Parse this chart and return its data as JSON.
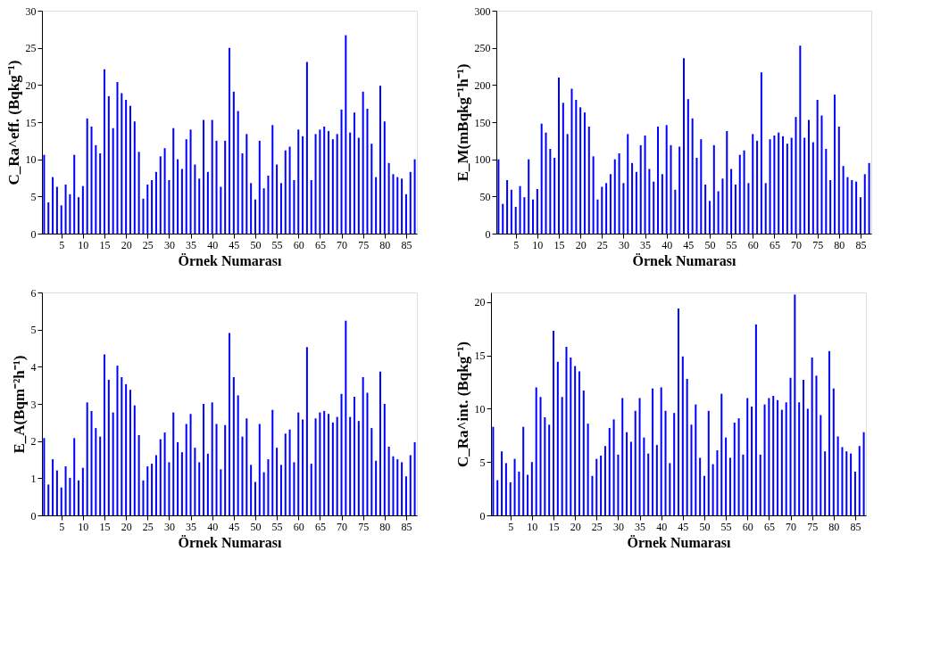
{
  "chart_data": [
    {
      "type": "bar",
      "xlabel": "Örnek Numarası",
      "ylabel": "C_Ra^eff. (Bqkg⁻¹)",
      "color": "#0000ff",
      "grid": false,
      "xlim": [
        0.5,
        87.5
      ],
      "xticks": [
        5,
        10,
        15,
        20,
        25,
        30,
        35,
        40,
        45,
        50,
        55,
        60,
        65,
        70,
        75,
        80,
        85
      ],
      "ylim": [
        0,
        30
      ],
      "yticks": [
        0,
        5,
        10,
        15,
        20,
        25,
        30
      ],
      "x": [
        1,
        2,
        3,
        4,
        5,
        6,
        7,
        8,
        9,
        10,
        11,
        12,
        13,
        14,
        15,
        16,
        17,
        18,
        19,
        20,
        21,
        22,
        23,
        24,
        25,
        26,
        27,
        28,
        29,
        30,
        31,
        32,
        33,
        34,
        35,
        36,
        37,
        38,
        39,
        40,
        41,
        42,
        43,
        44,
        45,
        46,
        47,
        48,
        49,
        50,
        51,
        52,
        53,
        54,
        55,
        56,
        57,
        58,
        59,
        60,
        61,
        62,
        63,
        64,
        65,
        66,
        67,
        68,
        69,
        70,
        71,
        72,
        73,
        74,
        75,
        76,
        77,
        78,
        79,
        80,
        81,
        82,
        83,
        84,
        85,
        86,
        87
      ],
      "values": [
        10.6,
        4.2,
        7.6,
        6.3,
        3.8,
        6.6,
        5.3,
        10.6,
        4.9,
        6.4,
        15.5,
        14.4,
        11.9,
        10.8,
        22.1,
        18.5,
        14.2,
        20.4,
        18.9,
        18.0,
        17.2,
        15.1,
        11.0,
        4.7,
        6.6,
        7.2,
        8.3,
        10.4,
        11.5,
        7.2,
        14.2,
        10.0,
        8.7,
        12.7,
        14.0,
        9.3,
        7.4,
        15.3,
        8.3,
        15.3,
        12.5,
        6.3,
        12.5,
        25.0,
        19.1,
        16.5,
        10.8,
        13.4,
        6.8,
        4.6,
        12.5,
        6.1,
        7.8,
        14.6,
        9.3,
        6.8,
        11.2,
        11.7,
        7.2,
        14.0,
        13.1,
        23.1,
        7.2,
        13.4,
        14.0,
        14.4,
        13.8,
        12.7,
        13.4,
        16.7,
        26.7,
        13.6,
        16.3,
        12.9,
        19.1,
        16.8,
        12.1,
        7.6,
        19.9,
        15.1,
        9.5,
        8.0,
        7.6,
        7.4,
        5.3,
        8.3,
        10.0
      ]
    },
    {
      "type": "bar",
      "xlabel": "Örnek Numarası",
      "ylabel": "E_M(mBqkg⁻¹h⁻¹)",
      "color": "#0000ff",
      "grid": false,
      "xlim": [
        0.5,
        87.5
      ],
      "xticks": [
        5,
        10,
        15,
        20,
        25,
        30,
        35,
        40,
        45,
        50,
        55,
        60,
        65,
        70,
        75,
        80,
        85
      ],
      "ylim": [
        0,
        300
      ],
      "yticks": [
        0,
        50,
        100,
        150,
        200,
        250,
        300
      ],
      "x": [
        1,
        2,
        3,
        4,
        5,
        6,
        7,
        8,
        9,
        10,
        11,
        12,
        13,
        14,
        15,
        16,
        17,
        18,
        19,
        20,
        21,
        22,
        23,
        24,
        25,
        26,
        27,
        28,
        29,
        30,
        31,
        32,
        33,
        34,
        35,
        36,
        37,
        38,
        39,
        40,
        41,
        42,
        43,
        44,
        45,
        46,
        47,
        48,
        49,
        50,
        51,
        52,
        53,
        54,
        55,
        56,
        57,
        58,
        59,
        60,
        61,
        62,
        63,
        64,
        65,
        66,
        67,
        68,
        69,
        70,
        71,
        72,
        73,
        74,
        75,
        76,
        77,
        78,
        79,
        80,
        81,
        82,
        83,
        84,
        85,
        86,
        87
      ],
      "values": [
        100,
        40,
        72,
        59,
        36,
        64,
        49,
        100,
        46,
        60,
        148,
        136,
        114,
        102,
        210,
        176,
        134,
        195,
        180,
        170,
        163,
        144,
        104,
        46,
        63,
        68,
        80,
        100,
        108,
        68,
        134,
        95,
        83,
        119,
        132,
        87,
        70,
        144,
        80,
        146,
        119,
        59,
        117,
        236,
        181,
        155,
        102,
        127,
        66,
        44,
        119,
        57,
        74,
        138,
        87,
        66,
        106,
        112,
        68,
        134,
        125,
        217,
        68,
        127,
        132,
        136,
        131,
        121,
        129,
        157,
        253,
        129,
        153,
        123,
        180,
        159,
        114,
        72,
        187,
        144,
        91,
        76,
        72,
        70,
        49,
        80,
        95
      ]
    },
    {
      "type": "bar",
      "xlabel": "Örnek Numarası",
      "ylabel": "E_A(Bqm⁻²h⁻¹)",
      "color": "#0000ff",
      "grid": false,
      "xlim": [
        0.5,
        87.5
      ],
      "xticks": [
        5,
        10,
        15,
        20,
        25,
        30,
        35,
        40,
        45,
        50,
        55,
        60,
        65,
        70,
        75,
        80,
        85
      ],
      "ylim": [
        0,
        6
      ],
      "yticks": [
        0,
        1,
        2,
        3,
        4,
        5,
        6
      ],
      "x": [
        1,
        2,
        3,
        4,
        5,
        6,
        7,
        8,
        9,
        10,
        11,
        12,
        13,
        14,
        15,
        16,
        17,
        18,
        19,
        20,
        21,
        22,
        23,
        24,
        25,
        26,
        27,
        28,
        29,
        30,
        31,
        32,
        33,
        34,
        35,
        36,
        37,
        38,
        39,
        40,
        41,
        42,
        43,
        44,
        45,
        46,
        47,
        48,
        49,
        50,
        51,
        52,
        53,
        54,
        55,
        56,
        57,
        58,
        59,
        60,
        61,
        62,
        63,
        64,
        65,
        66,
        67,
        68,
        69,
        70,
        71,
        72,
        73,
        74,
        75,
        76,
        77,
        78,
        79,
        80,
        81,
        82,
        83,
        84,
        85,
        86,
        87
      ],
      "values": [
        2.08,
        0.83,
        1.51,
        1.21,
        0.75,
        1.32,
        1.01,
        2.08,
        0.94,
        1.28,
        3.04,
        2.81,
        2.35,
        2.12,
        4.33,
        3.65,
        2.77,
        4.03,
        3.72,
        3.53,
        3.38,
        2.96,
        2.16,
        0.94,
        1.32,
        1.39,
        1.62,
        2.05,
        2.23,
        1.43,
        2.77,
        1.97,
        1.7,
        2.46,
        2.73,
        1.82,
        1.43,
        3.0,
        1.66,
        3.04,
        2.46,
        1.24,
        2.43,
        4.91,
        3.72,
        3.23,
        2.12,
        2.61,
        1.36,
        0.9,
        2.46,
        1.16,
        1.51,
        2.84,
        1.82,
        1.36,
        2.2,
        2.31,
        1.43,
        2.77,
        2.58,
        4.53,
        1.39,
        2.61,
        2.77,
        2.81,
        2.73,
        2.5,
        2.65,
        3.27,
        5.24,
        2.65,
        3.19,
        2.54,
        3.72,
        3.3,
        2.35,
        1.47,
        3.87,
        3.0,
        1.85,
        1.59,
        1.51,
        1.43,
        1.05,
        1.62,
        1.97
      ]
    },
    {
      "type": "bar",
      "xlabel": "Örnek Numarası",
      "ylabel": "C_Ra^int. (Bqkg⁻¹)",
      "color": "#0000ff",
      "grid": false,
      "xlim": [
        0.5,
        87.5
      ],
      "xticks": [
        5,
        10,
        15,
        20,
        25,
        30,
        35,
        40,
        45,
        50,
        55,
        60,
        65,
        70,
        75,
        80,
        85
      ],
      "ylim": [
        0,
        20.9
      ],
      "yticks": [
        0,
        5,
        10,
        15,
        20
      ],
      "x": [
        1,
        2,
        3,
        4,
        5,
        6,
        7,
        8,
        9,
        10,
        11,
        12,
        13,
        14,
        15,
        16,
        17,
        18,
        19,
        20,
        21,
        22,
        23,
        24,
        25,
        26,
        27,
        28,
        29,
        30,
        31,
        32,
        33,
        34,
        35,
        36,
        37,
        38,
        39,
        40,
        41,
        42,
        43,
        44,
        45,
        46,
        47,
        48,
        49,
        50,
        51,
        52,
        53,
        54,
        55,
        56,
        57,
        58,
        59,
        60,
        61,
        62,
        63,
        64,
        65,
        66,
        67,
        68,
        69,
        70,
        71,
        72,
        73,
        74,
        75,
        76,
        77,
        78,
        79,
        80,
        81,
        82,
        83,
        84,
        85,
        86,
        87
      ],
      "values": [
        8.3,
        3.3,
        6.0,
        4.9,
        3.1,
        5.3,
        4.1,
        8.3,
        3.8,
        5.0,
        12.0,
        11.1,
        9.2,
        8.5,
        17.3,
        14.4,
        11.1,
        15.8,
        14.8,
        14.0,
        13.5,
        11.7,
        8.6,
        3.7,
        5.3,
        5.6,
        6.5,
        8.2,
        9.0,
        5.7,
        11.0,
        7.8,
        6.9,
        9.8,
        11.0,
        7.3,
        5.8,
        11.9,
        6.6,
        12.0,
        9.8,
        4.9,
        9.6,
        19.4,
        14.9,
        12.8,
        8.5,
        10.4,
        5.4,
        3.7,
        9.8,
        4.8,
        6.1,
        11.4,
        7.3,
        5.4,
        8.7,
        9.1,
        5.7,
        11.0,
        10.2,
        17.9,
        5.7,
        10.4,
        11.0,
        11.2,
        10.8,
        9.9,
        10.6,
        12.9,
        20.7,
        10.6,
        12.7,
        10.0,
        14.8,
        13.1,
        9.4,
        6.0,
        15.4,
        11.9,
        7.4,
        6.4,
        6.0,
        5.8,
        4.1,
        6.5,
        7.8
      ]
    }
  ]
}
